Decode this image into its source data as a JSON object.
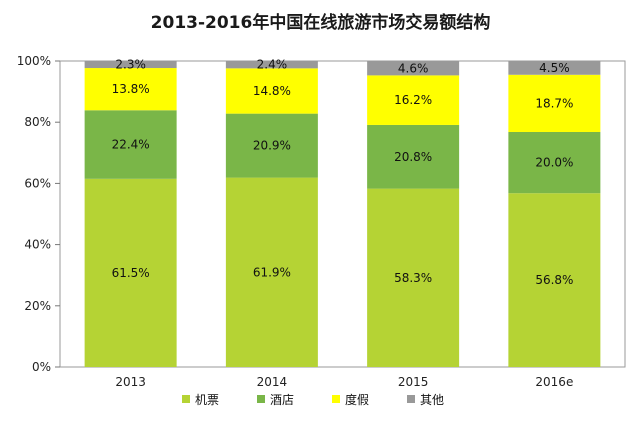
{
  "chart_data": {
    "type": "bar",
    "stacked": true,
    "percent_stacked": true,
    "title": "2013-2016年中国在线旅游市场交易额结构",
    "categories": [
      "2013",
      "2014",
      "2015",
      "2016e"
    ],
    "series": [
      {
        "name": "机票",
        "values": [
          61.5,
          61.9,
          58.3,
          56.8
        ],
        "labels": [
          "61.5%",
          "61.9%",
          "58.3%",
          "56.8%"
        ],
        "color": "#b5d334"
      },
      {
        "name": "酒店",
        "values": [
          22.4,
          20.9,
          20.8,
          20.0
        ],
        "labels": [
          "22.4%",
          "20.9%",
          "20.8%",
          "20.0%"
        ],
        "color": "#7ab648"
      },
      {
        "name": "度假",
        "values": [
          13.8,
          14.8,
          16.2,
          18.7
        ],
        "labels": [
          "13.8%",
          "14.8%",
          "16.2%",
          "18.7%"
        ],
        "color": "#ffff00"
      },
      {
        "name": "其他",
        "values": [
          2.3,
          2.4,
          4.6,
          4.5
        ],
        "labels": [
          "2.3%",
          "2.4%",
          "4.6%",
          "4.5%"
        ],
        "color": "#999999"
      }
    ],
    "yticks": [
      "0%",
      "20%",
      "40%",
      "60%",
      "80%",
      "100%"
    ],
    "ylim": [
      0,
      100
    ],
    "legend_position": "bottom",
    "grid": false
  }
}
